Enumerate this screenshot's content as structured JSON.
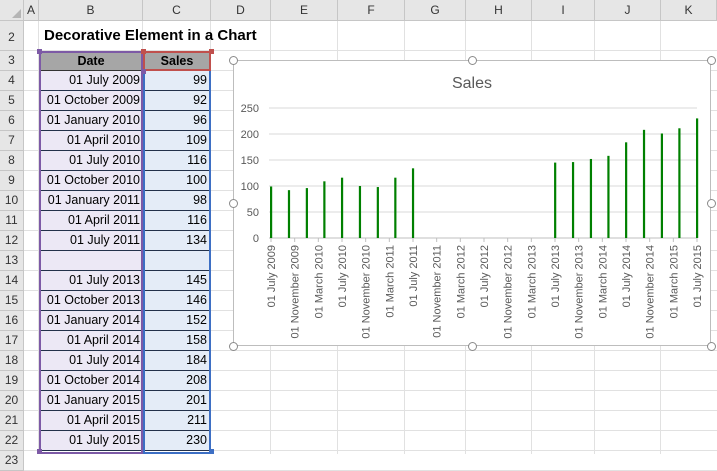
{
  "sheet": {
    "title": "Decorative Element in a Chart",
    "columns": [
      "A",
      "B",
      "C",
      "D",
      "E",
      "F",
      "G",
      "H",
      "I",
      "J",
      "K"
    ],
    "rows": [
      2,
      3,
      4,
      5,
      6,
      7,
      8,
      9,
      10,
      11,
      12,
      13,
      14,
      15,
      16,
      17,
      18,
      19,
      20,
      21,
      22,
      23
    ],
    "headers": {
      "date": "Date",
      "sales": "Sales"
    },
    "data": [
      {
        "row": 5,
        "date": "01 July 2009",
        "sales": "99"
      },
      {
        "row": 6,
        "date": "01 October 2009",
        "sales": "92"
      },
      {
        "row": 7,
        "date": "01 January 2010",
        "sales": "96"
      },
      {
        "row": 8,
        "date": "01 April 2010",
        "sales": "109"
      },
      {
        "row": 9,
        "date": "01 July 2010",
        "sales": "116"
      },
      {
        "row": 10,
        "date": "01 October 2010",
        "sales": "100"
      },
      {
        "row": 11,
        "date": "01 January 2011",
        "sales": "98"
      },
      {
        "row": 12,
        "date": "01 April 2011",
        "sales": "116"
      },
      {
        "row": 13,
        "date": "01 July 2011",
        "sales": "134"
      },
      {
        "row": 14,
        "date": "",
        "sales": ""
      },
      {
        "row": 15,
        "date": "01 July 2013",
        "sales": "145"
      },
      {
        "row": 16,
        "date": "01 October 2013",
        "sales": "146"
      },
      {
        "row": 17,
        "date": "01 January 2014",
        "sales": "152"
      },
      {
        "row": 18,
        "date": "01 April 2014",
        "sales": "158"
      },
      {
        "row": 19,
        "date": "01 July 2014",
        "sales": "184"
      },
      {
        "row": 20,
        "date": "01 October 2014",
        "sales": "208"
      },
      {
        "row": 21,
        "date": "01 January 2015",
        "sales": "201"
      },
      {
        "row": 22,
        "date": "01 April 2015",
        "sales": "211"
      },
      {
        "row": 23,
        "date": "01 July 2015",
        "sales": "230"
      }
    ]
  },
  "chart_data": {
    "type": "bar",
    "title": "Sales",
    "xlabel": "",
    "ylabel": "",
    "ylim": [
      0,
      250
    ],
    "yticks": [
      "0",
      "50",
      "100",
      "150",
      "200",
      "250"
    ],
    "grid": true,
    "legend": "none",
    "bar_color": "#008000",
    "x_tick_labels": [
      "01 July 2009",
      "01 November 2009",
      "01 March 2010",
      "01 July 2010",
      "01 November 2010",
      "01 March 2011",
      "01 July 2011",
      "01 November 2011",
      "01 March 2012",
      "01 July 2012",
      "01 November 2012",
      "01 March 2013",
      "01 July 2013",
      "01 November 2013",
      "01 March 2014",
      "01 July 2014",
      "01 November 2014",
      "01 March 2015",
      "01 July 2015"
    ],
    "x_start": "2009-07-01",
    "x_end": "2015-07-01",
    "points": [
      {
        "date": "2009-07-01",
        "value": 99
      },
      {
        "date": "2009-10-01",
        "value": 92
      },
      {
        "date": "2010-01-01",
        "value": 96
      },
      {
        "date": "2010-04-01",
        "value": 109
      },
      {
        "date": "2010-07-01",
        "value": 116
      },
      {
        "date": "2010-10-01",
        "value": 100
      },
      {
        "date": "2011-01-01",
        "value": 98
      },
      {
        "date": "2011-04-01",
        "value": 116
      },
      {
        "date": "2011-07-01",
        "value": 134
      },
      {
        "date": "2013-07-01",
        "value": 145
      },
      {
        "date": "2013-10-01",
        "value": 146
      },
      {
        "date": "2014-01-01",
        "value": 152
      },
      {
        "date": "2014-04-01",
        "value": 158
      },
      {
        "date": "2014-07-01",
        "value": 184
      },
      {
        "date": "2014-10-01",
        "value": 208
      },
      {
        "date": "2015-01-01",
        "value": 201
      },
      {
        "date": "2015-04-01",
        "value": 211
      },
      {
        "date": "2015-07-01",
        "value": 230
      }
    ]
  }
}
